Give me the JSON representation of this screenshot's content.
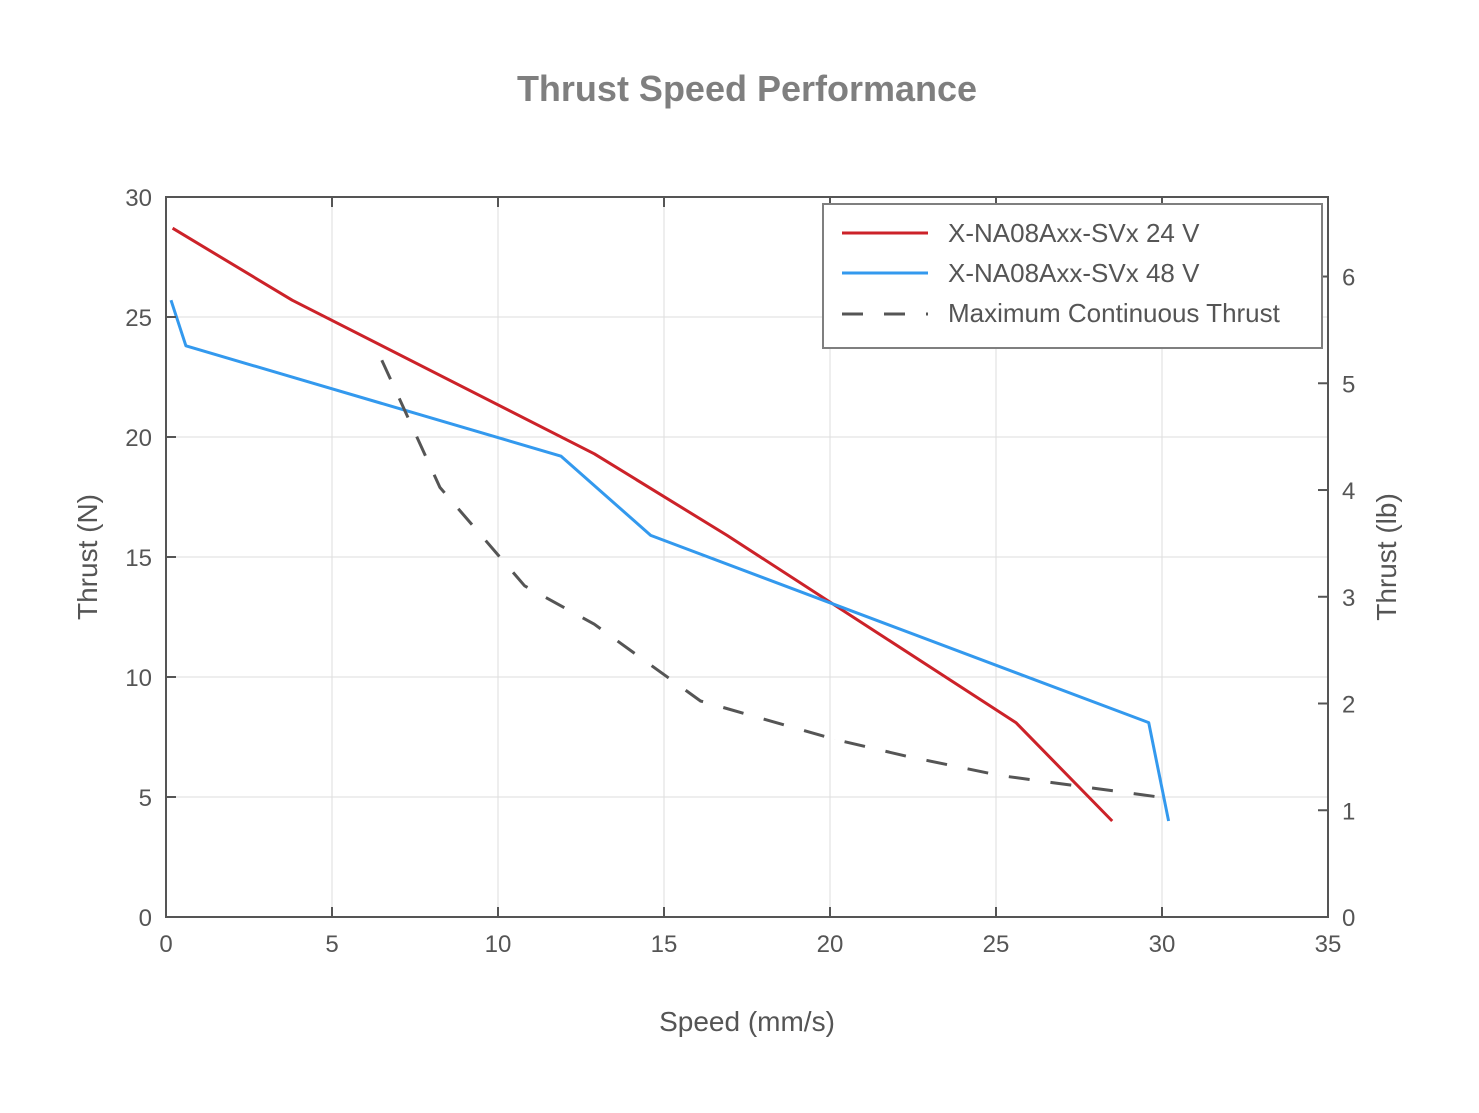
{
  "chart_data": {
    "type": "line",
    "title": "Thrust Speed Performance",
    "xlabel": "Speed (mm/s)",
    "ylabel": "Thrust (N)",
    "y2label": "Thrust (lb)",
    "xlim": [
      0,
      35
    ],
    "ylim": [
      0,
      30
    ],
    "y2lim": [
      0,
      6.745
    ],
    "xticks": [
      "0",
      "5",
      "10",
      "15",
      "20",
      "25",
      "30",
      "35"
    ],
    "yticks": [
      "0",
      "5",
      "10",
      "15",
      "20",
      "25",
      "30"
    ],
    "y2ticks": [
      "0",
      "1",
      "2",
      "3",
      "4",
      "5",
      "6"
    ],
    "grid": true,
    "legend_position": "top-right",
    "series": [
      {
        "name": "X-NA08Axx-SVx 24 V",
        "color": "#cc2229",
        "style": "solid",
        "x": [
          0.2,
          3.8,
          12.9,
          16.9,
          25.6,
          28.5
        ],
        "y": [
          28.7,
          25.7,
          19.3,
          15.9,
          8.1,
          4.0
        ]
      },
      {
        "name": "X-NA08Axx-SVx 48 V",
        "color": "#3399ee",
        "style": "solid",
        "x": [
          0.15,
          0.6,
          11.9,
          14.6,
          29.6,
          30.2
        ],
        "y": [
          25.7,
          23.8,
          19.2,
          15.9,
          8.1,
          4.0
        ]
      },
      {
        "name": "Maximum Continuous Thrust",
        "color": "#555555",
        "style": "dashed",
        "x": [
          6.5,
          8.25,
          10.8,
          12.9,
          16.1,
          20.15,
          22.3,
          25.1,
          29.9
        ],
        "y": [
          23.2,
          17.9,
          13.8,
          12.2,
          9.0,
          7.4,
          6.7,
          5.9,
          5.0
        ]
      }
    ]
  }
}
